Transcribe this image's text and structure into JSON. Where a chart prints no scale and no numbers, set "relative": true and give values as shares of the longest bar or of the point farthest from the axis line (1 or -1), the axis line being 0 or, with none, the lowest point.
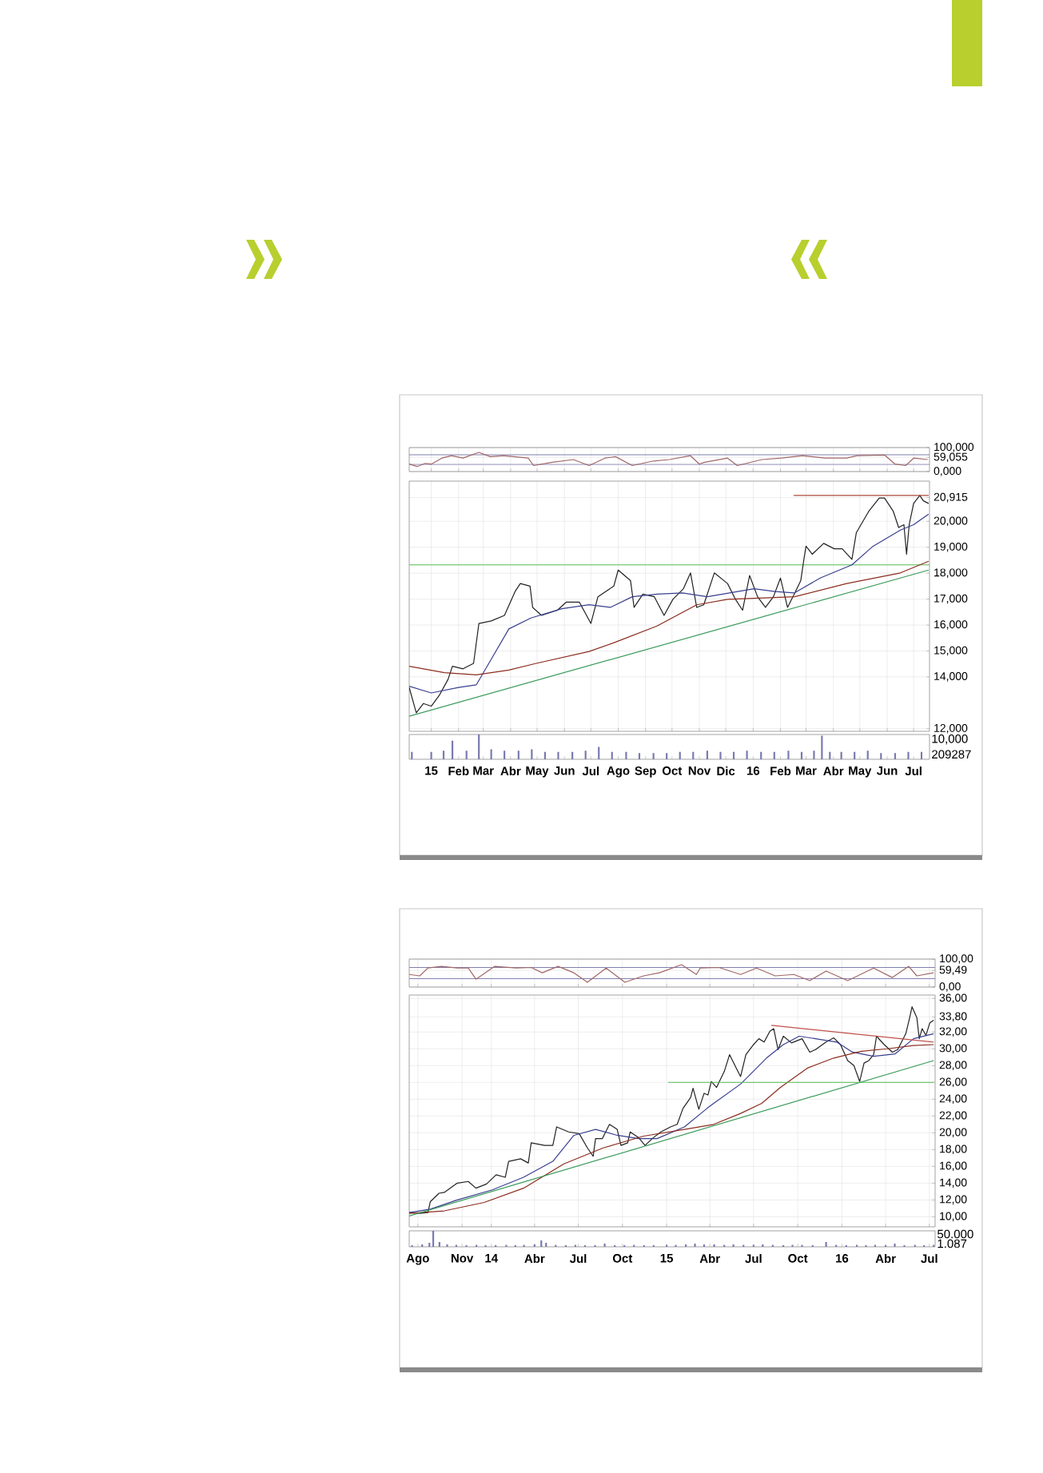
{
  "chart_data": [
    {
      "type": "line",
      "x": [
        "2014-12-07",
        "2014-12-16",
        "2014-12-25",
        "2015-01-01",
        "2015-01-13",
        "2015-01-24",
        "2015-02-06",
        "2015-02-24",
        "2015-03-09",
        "2015-03-24",
        "2015-04-21",
        "2015-04-27",
        "2015-05-17",
        "2015-06-11",
        "2015-06-29",
        "2015-07-17",
        "2015-07-29",
        "2015-08-17",
        "2015-09-10",
        "2015-09-28",
        "2015-10-22",
        "2015-11-01",
        "2015-11-06",
        "2015-12-03",
        "2015-12-14",
        "2016-01-11",
        "2016-02-02",
        "2016-02-26",
        "2016-03-23",
        "2016-04-16",
        "2016-04-28",
        "2016-05-29",
        "2016-06-10",
        "2016-06-22",
        "2016-07-01",
        "2016-07-17"
      ],
      "series": [
        {
          "color": "#a06868",
          "values": [
            31,
            21,
            34,
            31,
            56,
            66,
            56,
            80,
            62,
            66,
            56,
            25,
            38,
            50,
            25,
            56,
            62,
            25,
            44,
            50,
            66,
            31,
            38,
            56,
            25,
            50,
            56,
            66,
            56,
            56,
            66,
            69,
            31,
            25,
            56,
            50
          ]
        }
      ],
      "xlim": [
        "2014-12-07",
        "2016-07-19"
      ],
      "xticks": [
        {
          "value": "2015-01",
          "label": null
        },
        {
          "value": "2015-02",
          "label": null
        },
        {
          "value": "2015-03",
          "label": null
        },
        {
          "value": "2015-04",
          "label": null
        },
        {
          "value": "2015-05",
          "label": null
        },
        {
          "value": "2015-06",
          "label": null
        },
        {
          "value": "2015-07",
          "label": null
        },
        {
          "value": "2015-08",
          "label": null
        },
        {
          "value": "2015-09",
          "label": null
        },
        {
          "value": "2015-10",
          "label": null
        },
        {
          "value": "2015-11",
          "label": null
        },
        {
          "value": "2015-12",
          "label": null
        },
        {
          "value": "2016-01",
          "label": null
        },
        {
          "value": "2016-02",
          "label": null
        },
        {
          "value": "2016-03",
          "label": null
        },
        {
          "value": "2016-04",
          "label": null
        },
        {
          "value": "2016-05",
          "label": null
        },
        {
          "value": "2016-06",
          "label": null
        },
        {
          "value": "2016-07",
          "label": null
        }
      ],
      "tick_labels": "y",
      "ylim": [
        0,
        100
      ],
      "yticks": [
        {
          "value": 0,
          "label": "0,000"
        },
        {
          "value": 59.055,
          "label": "59,055"
        },
        {
          "value": 100,
          "label": "100,000"
        }
      ],
      "ref_lines": [
        {
          "axis": "y",
          "value": 70,
          "color": "#8080b0"
        },
        {
          "axis": "y",
          "value": 30,
          "color": "#8080b0"
        }
      ],
      "grid": true
    },
    {
      "type": "line",
      "series": [
        {
          "color": "#222222",
          "x": [
            "2014-12-07",
            "2014-12-15",
            "2014-12-23",
            "2015-01-01",
            "2015-01-10",
            "2015-01-20",
            "2015-01-25",
            "2015-02-06",
            "2015-02-18",
            "2015-02-24",
            "2015-03-10",
            "2015-03-25",
            "2015-04-06",
            "2015-04-12",
            "2015-04-23",
            "2015-04-26",
            "2015-05-06",
            "2015-05-24",
            "2015-06-03",
            "2015-06-18",
            "2015-07-01",
            "2015-07-09",
            "2015-07-27",
            "2015-08-01",
            "2015-08-15",
            "2015-08-19",
            "2015-08-29",
            "2015-09-11",
            "2015-09-22",
            "2015-10-02",
            "2015-10-14",
            "2015-10-22",
            "2015-10-29",
            "2015-11-06",
            "2015-11-18",
            "2015-12-03",
            "2015-12-12",
            "2015-12-20",
            "2015-12-28",
            "2016-01-06",
            "2016-01-15",
            "2016-01-24",
            "2016-02-01",
            "2016-02-09",
            "2016-02-18",
            "2016-02-24",
            "2016-02-28",
            "2016-03-01",
            "2016-03-08",
            "2016-03-21",
            "2016-04-02",
            "2016-04-11",
            "2016-04-22",
            "2016-04-27",
            "2016-05-11",
            "2016-05-23",
            "2016-05-29",
            "2016-06-08",
            "2016-06-14",
            "2016-06-20",
            "2016-06-23",
            "2016-06-26",
            "2016-07-01",
            "2016-07-08",
            "2016-07-12",
            "2016-07-18"
          ],
          "values": [
            13.59,
            12.61,
            12.97,
            12.87,
            13.28,
            13.9,
            14.41,
            14.31,
            14.52,
            16.06,
            16.16,
            16.37,
            17.29,
            17.6,
            17.5,
            16.68,
            16.37,
            16.57,
            16.88,
            16.88,
            16.06,
            17.09,
            17.5,
            18.12,
            17.71,
            16.68,
            17.19,
            17.09,
            16.37,
            16.99,
            17.4,
            18.01,
            16.68,
            16.78,
            18.01,
            17.6,
            16.99,
            16.57,
            17.91,
            17.09,
            16.68,
            17.09,
            17.81,
            16.68,
            17.29,
            17.71,
            18.63,
            19.04,
            18.73,
            19.15,
            18.94,
            18.94,
            18.53,
            19.56,
            20.38,
            20.9,
            20.9,
            20.38,
            19.76,
            19.87,
            18.73,
            19.87,
            20.69,
            21.0,
            20.79,
            20.69
          ]
        },
        {
          "color": "#3a3f8f",
          "x": [
            "2014-12-07",
            "2015-01-01",
            "2015-02-01",
            "2015-02-21",
            "2015-03-09",
            "2015-03-30",
            "2015-04-24",
            "2015-05-29",
            "2015-06-29",
            "2015-07-23",
            "2015-08-17",
            "2015-09-14",
            "2015-10-13",
            "2015-11-10",
            "2016-01-02",
            "2016-01-26",
            "2016-02-17",
            "2016-03-17",
            "2016-04-22",
            "2016-05-16",
            "2016-06-16",
            "2016-07-01",
            "2016-07-18"
          ],
          "values": [
            13.64,
            13.38,
            13.59,
            13.69,
            14.62,
            15.85,
            16.27,
            16.63,
            16.78,
            16.68,
            17.09,
            17.19,
            17.24,
            17.09,
            17.4,
            17.29,
            17.24,
            17.81,
            18.32,
            19.04,
            19.66,
            19.87,
            20.28
          ]
        },
        {
          "color": "#8b2d1f",
          "x": [
            "2014-12-07",
            "2015-01-16",
            "2015-02-21",
            "2015-03-30",
            "2015-04-30",
            "2015-06-29",
            "2015-07-29",
            "2015-09-14",
            "2015-10-29",
            "2015-12-03",
            "2016-02-17",
            "2016-04-16",
            "2016-06-16",
            "2016-07-18"
          ],
          "values": [
            14.41,
            14.16,
            14.08,
            14.26,
            14.52,
            14.98,
            15.34,
            15.96,
            16.78,
            16.99,
            17.09,
            17.6,
            18.01,
            18.46
          ]
        },
        {
          "color": "#3a9a5a",
          "x": [
            "2014-12-07",
            "2016-07-18"
          ],
          "values": [
            12.48,
            18.12
          ]
        },
        {
          "color": "#b04a3a",
          "x": [
            "2016-02-16",
            "2016-07-18"
          ],
          "values": [
            21.0,
            21.0
          ]
        }
      ],
      "xlim": [
        "2014-12-07",
        "2016-07-19"
      ],
      "xticks": [
        {
          "value": "2015-01",
          "label": null
        },
        {
          "value": "2015-02",
          "label": null
        },
        {
          "value": "2015-03",
          "label": null
        },
        {
          "value": "2015-04",
          "label": null
        },
        {
          "value": "2015-05",
          "label": null
        },
        {
          "value": "2015-06",
          "label": null
        },
        {
          "value": "2015-07",
          "label": null
        },
        {
          "value": "2015-08",
          "label": null
        },
        {
          "value": "2015-09",
          "label": null
        },
        {
          "value": "2015-10",
          "label": null
        },
        {
          "value": "2015-11",
          "label": null
        },
        {
          "value": "2015-12",
          "label": null
        },
        {
          "value": "2016-01",
          "label": null
        },
        {
          "value": "2016-02",
          "label": null
        },
        {
          "value": "2016-03",
          "label": null
        },
        {
          "value": "2016-04",
          "label": null
        },
        {
          "value": "2016-05",
          "label": null
        },
        {
          "value": "2016-06",
          "label": null
        },
        {
          "value": "2016-07",
          "label": null
        }
      ],
      "tick_labels": "y",
      "ylim": [
        11.9,
        21.55
      ],
      "yticks": [
        {
          "value": 12,
          "label": "12,000"
        },
        {
          "value": 14,
          "label": "14,000"
        },
        {
          "value": 15,
          "label": "15,000"
        },
        {
          "value": 16,
          "label": "16,000"
        },
        {
          "value": 17,
          "label": "17,000"
        },
        {
          "value": 18,
          "label": "18,000"
        },
        {
          "value": 19,
          "label": "19,000"
        },
        {
          "value": 20,
          "label": "20,000"
        },
        {
          "value": 20.915,
          "label": "20,915"
        }
      ],
      "ref_lines": [
        {
          "axis": "y",
          "value": 18.32,
          "color": "#55bb55"
        }
      ],
      "grid": true
    },
    {
      "type": "bar",
      "relative": true,
      "color": "#7a7ab0",
      "x": [
        "2014-12-10",
        "2015-01-01",
        "2015-01-15",
        "2015-01-25",
        "2015-02-10",
        "2015-02-24",
        "2015-03-10",
        "2015-03-25",
        "2015-04-10",
        "2015-04-25",
        "2015-05-10",
        "2015-05-25",
        "2015-06-10",
        "2015-06-25",
        "2015-07-10",
        "2015-07-25",
        "2015-08-10",
        "2015-08-25",
        "2015-09-10",
        "2015-09-25",
        "2015-10-10",
        "2015-10-25",
        "2015-11-10",
        "2015-11-25",
        "2015-12-10",
        "2015-12-25",
        "2016-01-10",
        "2016-01-25",
        "2016-02-10",
        "2016-02-25",
        "2016-03-10",
        "2016-03-19",
        "2016-03-28",
        "2016-04-10",
        "2016-04-25",
        "2016-05-10",
        "2016-05-25",
        "2016-06-10",
        "2016-06-25",
        "2016-07-10"
      ],
      "values": [
        0.3,
        0.3,
        0.35,
        0.75,
        0.35,
        1,
        0.4,
        0.35,
        0.35,
        0.4,
        0.3,
        0.3,
        0.3,
        0.35,
        0.5,
        0.3,
        0.3,
        0.25,
        0.25,
        0.25,
        0.3,
        0.3,
        0.35,
        0.3,
        0.3,
        0.35,
        0.3,
        0.3,
        0.35,
        0.3,
        0.35,
        0.95,
        0.3,
        0.3,
        0.3,
        0.35,
        0.25,
        0.25,
        0.3,
        0.3
      ],
      "xlim": [
        "2014-12-07",
        "2016-07-19"
      ],
      "xticks": [
        {
          "value": "2015-01",
          "label": "15"
        },
        {
          "value": "2015-02",
          "label": "Feb"
        },
        {
          "value": "2015-03",
          "label": "Mar"
        },
        {
          "value": "2015-04",
          "label": "Abr"
        },
        {
          "value": "2015-05",
          "label": "May"
        },
        {
          "value": "2015-06",
          "label": "Jun"
        },
        {
          "value": "2015-07",
          "label": "Jul"
        },
        {
          "value": "2015-08",
          "label": "Ago"
        },
        {
          "value": "2015-09",
          "label": "Sep"
        },
        {
          "value": "2015-10",
          "label": "Oct"
        },
        {
          "value": "2015-11",
          "label": "Nov"
        },
        {
          "value": "2015-12",
          "label": "Dic"
        },
        {
          "value": "2016-01",
          "label": "16"
        },
        {
          "value": "2016-02",
          "label": "Feb"
        },
        {
          "value": "2016-03",
          "label": "Mar"
        },
        {
          "value": "2016-04",
          "label": "Abr"
        },
        {
          "value": "2016-05",
          "label": "May"
        },
        {
          "value": "2016-06",
          "label": "Jun"
        },
        {
          "value": "2016-07",
          "label": "Jul"
        }
      ],
      "annotations": [
        "10,000",
        "209287"
      ]
    },
    {
      "type": "line",
      "x": [
        "2013-07-14",
        "2013-08-05",
        "2013-08-22",
        "2013-09-19",
        "2013-10-22",
        "2013-11-14",
        "2013-11-30",
        "2014-01-08",
        "2014-02-22",
        "2014-03-25",
        "2014-04-17",
        "2014-05-20",
        "2014-06-22",
        "2014-07-20",
        "2014-08-28",
        "2014-10-06",
        "2014-11-14",
        "2014-12-17",
        "2015-02-01",
        "2015-03-04",
        "2015-03-12",
        "2015-04-20",
        "2015-06-04",
        "2015-07-07",
        "2015-08-15",
        "2015-09-23",
        "2015-10-26",
        "2015-11-29",
        "2016-01-13",
        "2016-03-07",
        "2016-04-15",
        "2016-05-19",
        "2016-06-05",
        "2016-07-10"
      ],
      "series": [
        {
          "color": "#a06868",
          "values": [
            45,
            40,
            68,
            74,
            68,
            68,
            28,
            74,
            68,
            70,
            51,
            74,
            51,
            17,
            68,
            17,
            40,
            51,
            80,
            45,
            68,
            70,
            45,
            68,
            40,
            45,
            23,
            57,
            23,
            68,
            34,
            74,
            40,
            51
          ]
        }
      ],
      "xlim": [
        "2013-07-14",
        "2016-07-13"
      ],
      "xticks": [
        {
          "value": "2013-08",
          "label": null
        },
        {
          "value": "2013-11",
          "label": null
        },
        {
          "value": "2014-01",
          "label": null
        },
        {
          "value": "2014-04",
          "label": null
        },
        {
          "value": "2014-07",
          "label": null
        },
        {
          "value": "2014-10",
          "label": null
        },
        {
          "value": "2015-01",
          "label": null
        },
        {
          "value": "2015-04",
          "label": null
        },
        {
          "value": "2015-07",
          "label": null
        },
        {
          "value": "2015-10",
          "label": null
        },
        {
          "value": "2016-01",
          "label": null
        },
        {
          "value": "2016-04",
          "label": null
        },
        {
          "value": "2016-07",
          "label": null
        }
      ],
      "tick_labels": "y",
      "ylim": [
        0,
        100
      ],
      "yticks": [
        {
          "value": 0,
          "label": "0,00"
        },
        {
          "value": 59.49,
          "label": "59,49"
        },
        {
          "value": 100,
          "label": "100,00"
        }
      ],
      "ref_lines": [
        {
          "axis": "y",
          "value": 70,
          "color": "#8080b0"
        },
        {
          "axis": "y",
          "value": 30,
          "color": "#8080b0"
        }
      ],
      "grid": true
    },
    {
      "type": "line",
      "series": [
        {
          "color": "#222222",
          "x": [
            "2013-07-14",
            "2013-08-05",
            "2013-08-22",
            "2013-08-27",
            "2013-09-14",
            "2013-09-25",
            "2013-10-22",
            "2013-11-14",
            "2013-11-30",
            "2013-12-22",
            "2014-01-11",
            "2014-01-30",
            "2014-02-06",
            "2014-03-03",
            "2014-03-19",
            "2014-03-25",
            "2014-04-22",
            "2014-05-09",
            "2014-05-17",
            "2014-06-11",
            "2014-07-03",
            "2014-07-20",
            "2014-08-01",
            "2014-08-06",
            "2014-08-20",
            "2014-09-04",
            "2014-09-20",
            "2014-09-28",
            "2014-10-12",
            "2014-10-17",
            "2014-11-04",
            "2014-11-17",
            "2014-12-04",
            "2014-12-20",
            "2015-01-09",
            "2015-01-23",
            "2015-02-04",
            "2015-02-20",
            "2015-02-25",
            "2015-03-09",
            "2015-03-20",
            "2015-03-28",
            "2015-04-04",
            "2015-04-15",
            "2015-05-01",
            "2015-05-12",
            "2015-05-26",
            "2015-06-04",
            "2015-06-15",
            "2015-07-01",
            "2015-07-12",
            "2015-07-23",
            "2015-08-04",
            "2015-08-12",
            "2015-08-21",
            "2015-09-01",
            "2015-09-18",
            "2015-10-10",
            "2015-10-26",
            "2015-11-07",
            "2015-11-29",
            "2015-12-15",
            "2015-12-29",
            "2016-01-13",
            "2016-01-26",
            "2016-02-07",
            "2016-02-16",
            "2016-02-26",
            "2016-03-07",
            "2016-03-13",
            "2016-03-29",
            "2016-04-15",
            "2016-04-26",
            "2016-05-13",
            "2016-05-21",
            "2016-05-26",
            "2016-06-05",
            "2016-06-10",
            "2016-06-16",
            "2016-06-24",
            "2016-07-02",
            "2016-07-10"
          ],
          "values": [
            10.5,
            10.4,
            10.5,
            11.8,
            12.8,
            12.9,
            14.0,
            14.2,
            13.4,
            13.9,
            15.0,
            14.7,
            16.6,
            16.9,
            16.4,
            18.8,
            18.5,
            18.5,
            20.7,
            20.1,
            19.9,
            18.2,
            17.2,
            19.3,
            19.3,
            21.0,
            20.4,
            18.5,
            18.8,
            20.1,
            19.4,
            18.5,
            19.4,
            20.1,
            20.7,
            21.0,
            22.9,
            24.2,
            25.3,
            22.8,
            24.7,
            24.5,
            26.1,
            25.4,
            27.3,
            29.3,
            27.7,
            26.7,
            29.3,
            30.5,
            31.2,
            30.8,
            32.1,
            32.4,
            29.9,
            31.5,
            30.7,
            31.2,
            29.6,
            29.9,
            30.8,
            31.3,
            30.5,
            28.6,
            28.0,
            26.1,
            28.3,
            28.6,
            29.3,
            31.5,
            30.5,
            29.6,
            29.9,
            31.8,
            33.7,
            35.0,
            33.7,
            31.2,
            32.4,
            31.6,
            33.1,
            33.4
          ]
        },
        {
          "color": "#3a3f8f",
          "x": [
            "2013-07-14",
            "2013-08-27",
            "2013-10-22",
            "2014-01-03",
            "2014-03-09",
            "2014-05-09",
            "2014-06-22",
            "2014-08-06",
            "2014-09-20",
            "2014-11-04",
            "2014-12-12",
            "2015-02-07",
            "2015-03-26",
            "2015-04-09",
            "2015-06-04",
            "2015-07-28",
            "2015-09-01",
            "2015-10-04",
            "2015-11-07",
            "2015-12-21",
            "2016-01-23",
            "2016-03-07",
            "2016-04-21",
            "2016-05-29",
            "2016-07-10"
          ],
          "values": [
            10.5,
            10.9,
            12.0,
            13.2,
            14.7,
            16.6,
            19.7,
            20.4,
            19.7,
            19.3,
            19.3,
            20.7,
            22.9,
            23.5,
            25.8,
            28.9,
            30.5,
            31.5,
            31.2,
            30.8,
            29.6,
            29.1,
            29.4,
            31.2,
            31.8
          ]
        },
        {
          "color": "#8b2d1f",
          "x": [
            "2013-07-14",
            "2013-09-25",
            "2013-12-17",
            "2014-03-09",
            "2014-06-01",
            "2014-08-22",
            "2014-11-14",
            "2015-02-07",
            "2015-04-09",
            "2015-06-04",
            "2015-07-18",
            "2015-08-26",
            "2015-10-21",
            "2015-12-15",
            "2016-02-10",
            "2016-04-04",
            "2016-05-29",
            "2016-07-10"
          ],
          "values": [
            10.4,
            10.7,
            11.7,
            13.4,
            16.3,
            18.2,
            19.6,
            20.4,
            21.0,
            22.3,
            23.5,
            25.4,
            27.7,
            28.9,
            29.7,
            30.0,
            30.4,
            30.5
          ]
        },
        {
          "color": "#3a9a5a",
          "x": [
            "2013-07-14",
            "2016-07-10"
          ],
          "values": [
            10.1,
            28.6
          ]
        },
        {
          "color": "#55bb55",
          "x": [
            "2015-01-04",
            "2016-07-10"
          ],
          "values": [
            26,
            26
          ]
        },
        {
          "color": "#c0504a",
          "x": [
            "2015-08-07",
            "2016-07-10"
          ],
          "values": [
            32.8,
            30.8
          ]
        }
      ],
      "xlim": [
        "2013-07-14",
        "2016-07-13"
      ],
      "xticks": [
        {
          "value": "2013-08",
          "label": null
        },
        {
          "value": "2013-11",
          "label": null
        },
        {
          "value": "2014-01",
          "label": null
        },
        {
          "value": "2014-04",
          "label": null
        },
        {
          "value": "2014-07",
          "label": null
        },
        {
          "value": "2014-10",
          "label": null
        },
        {
          "value": "2015-01",
          "label": null
        },
        {
          "value": "2015-04",
          "label": null
        },
        {
          "value": "2015-07",
          "label": null
        },
        {
          "value": "2015-10",
          "label": null
        },
        {
          "value": "2016-01",
          "label": null
        },
        {
          "value": "2016-04",
          "label": null
        },
        {
          "value": "2016-07",
          "label": null
        }
      ],
      "tick_labels": "y",
      "ylim": [
        8.8,
        36.4
      ],
      "yticks": [
        {
          "value": 10,
          "label": "10,00"
        },
        {
          "value": 12,
          "label": "12,00"
        },
        {
          "value": 14,
          "label": "14,00"
        },
        {
          "value": 16,
          "label": "16,00"
        },
        {
          "value": 18,
          "label": "18,00"
        },
        {
          "value": 20,
          "label": "20,00"
        },
        {
          "value": 22,
          "label": "22,00"
        },
        {
          "value": 24,
          "label": "24,00"
        },
        {
          "value": 26,
          "label": "26,00"
        },
        {
          "value": 28,
          "label": "28,00"
        },
        {
          "value": 30,
          "label": "30,00"
        },
        {
          "value": 32,
          "label": "32,00"
        },
        {
          "value": 33.8,
          "label": "33,80"
        },
        {
          "value": 36,
          "label": "36,00"
        }
      ],
      "grid": true
    },
    {
      "type": "bar",
      "relative": true,
      "color": "#7a7ab0",
      "x": [
        "2013-07-20",
        "2013-08-10",
        "2013-08-25",
        "2013-09-02",
        "2013-09-15",
        "2013-10-01",
        "2013-10-20",
        "2013-11-10",
        "2013-12-01",
        "2013-12-20",
        "2014-01-10",
        "2014-02-01",
        "2014-02-20",
        "2014-03-10",
        "2014-04-01",
        "2014-04-15",
        "2014-04-25",
        "2014-05-15",
        "2014-06-05",
        "2014-06-25",
        "2014-07-15",
        "2014-08-05",
        "2014-08-25",
        "2014-09-15",
        "2014-10-05",
        "2014-10-25",
        "2014-11-15",
        "2014-12-05",
        "2015-01-01",
        "2015-01-20",
        "2015-02-10",
        "2015-03-01",
        "2015-03-20",
        "2015-04-10",
        "2015-05-01",
        "2015-05-20",
        "2015-06-10",
        "2015-07-01",
        "2015-07-20",
        "2015-08-10",
        "2015-09-01",
        "2015-09-20",
        "2015-10-10",
        "2015-11-01",
        "2015-11-29",
        "2015-12-20",
        "2016-01-10",
        "2016-02-01",
        "2016-02-20",
        "2016-03-10",
        "2016-04-01",
        "2016-04-20",
        "2016-05-10",
        "2016-06-01",
        "2016-06-20",
        "2016-07-10"
      ],
      "values": [
        0.1,
        0.15,
        0.25,
        1,
        0.3,
        0.15,
        0.12,
        0.1,
        0.12,
        0.1,
        0.1,
        0.12,
        0.1,
        0.12,
        0.15,
        0.4,
        0.25,
        0.12,
        0.1,
        0.12,
        0.1,
        0.1,
        0.2,
        0.1,
        0.1,
        0.12,
        0.1,
        0.1,
        0.12,
        0.12,
        0.15,
        0.2,
        0.15,
        0.15,
        0.12,
        0.15,
        0.12,
        0.12,
        0.15,
        0.12,
        0.1,
        0.12,
        0.12,
        0.1,
        0.3,
        0.12,
        0.1,
        0.12,
        0.1,
        0.12,
        0.1,
        0.2,
        0.1,
        0.12,
        0.1,
        0.12
      ],
      "xlim": [
        "2013-07-14",
        "2016-07-13"
      ],
      "xticks": [
        {
          "value": "2013-08",
          "label": "Ago"
        },
        {
          "value": "2013-11",
          "label": "Nov"
        },
        {
          "value": "2014-01",
          "label": "14"
        },
        {
          "value": "2014-04",
          "label": "Abr"
        },
        {
          "value": "2014-07",
          "label": "Jul"
        },
        {
          "value": "2014-10",
          "label": "Oct"
        },
        {
          "value": "2015-01",
          "label": "15"
        },
        {
          "value": "2015-04",
          "label": "Abr"
        },
        {
          "value": "2015-07",
          "label": "Jul"
        },
        {
          "value": "2015-10",
          "label": "Oct"
        },
        {
          "value": "2016-01",
          "label": "16"
        },
        {
          "value": "2016-04",
          "label": "Abr"
        },
        {
          "value": "2016-07",
          "label": "Jul"
        }
      ],
      "annotations": [
        "50.000",
        "1.087"
      ]
    }
  ]
}
